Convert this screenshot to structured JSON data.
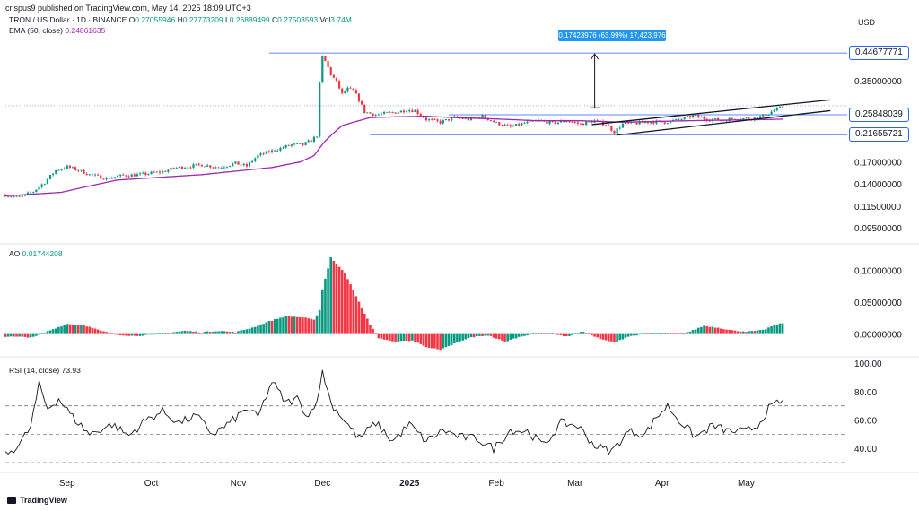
{
  "header": {
    "publisher": "crispus9 published on TradingView.com, May 14, 2025 18:09 UTC+3",
    "symbol": "TRON / US Dollar · 1D · BINANCE",
    "ohlc": [
      {
        "k": "O",
        "v": "0.27055946"
      },
      {
        "k": "H",
        "v": "0.27773209"
      },
      {
        "k": "L",
        "v": "0.26889499"
      },
      {
        "k": "C",
        "v": "0.27503593"
      },
      {
        "k": "Vol",
        "v": "3.74M"
      }
    ],
    "ema_label": "EMA (50, close)",
    "ema_value": "0.24861635",
    "currency": "USD"
  },
  "ao": {
    "label": "AO",
    "value": "0.01744208"
  },
  "rsi": {
    "label": "RSI (14, close)",
    "value": "73.93"
  },
  "measure": {
    "text": "0.17423976 (63.99%) 17,423,976"
  },
  "price_boxes": [
    {
      "text": "0.44677771",
      "value": 0.44677771
    },
    {
      "text": "0.25848039",
      "value": 0.25848039
    },
    {
      "text": "0.21655721",
      "value": 0.21655721
    }
  ],
  "brand": "TradingView",
  "colors": {
    "up": "#089981",
    "down": "#f23645",
    "ema": "#9c27b0",
    "rsi": "#131722",
    "level": "#2962ff"
  },
  "chart_data": [
    {
      "type": "candlestick",
      "title": "TRON / US Dollar · 1D · BINANCE",
      "y_scale": "log",
      "ylim": [
        0.085,
        0.52
      ],
      "y_ticks": [
        {
          "v": 0.35,
          "label": "0.35000000"
        },
        {
          "v": 0.17,
          "label": "0.17000000"
        },
        {
          "v": 0.14,
          "label": "0.14000000"
        },
        {
          "v": 0.115,
          "label": "0.11500000"
        },
        {
          "v": 0.095,
          "label": "0.09500000"
        }
      ],
      "x_labels": [
        {
          "label": "Sep",
          "bold": false,
          "day": 22
        },
        {
          "label": "Oct",
          "bold": false,
          "day": 52
        },
        {
          "label": "Nov",
          "bold": false,
          "day": 83
        },
        {
          "label": "Dec",
          "bold": false,
          "day": 113
        },
        {
          "label": "2025",
          "bold": true,
          "day": 144
        },
        {
          "label": "Feb",
          "bold": false,
          "day": 175
        },
        {
          "label": "Mar",
          "bold": false,
          "day": 203
        },
        {
          "label": "Apr",
          "bold": false,
          "day": 234
        },
        {
          "label": "May",
          "bold": false,
          "day": 264
        }
      ],
      "anchors": [
        [
          0,
          0.127
        ],
        [
          5,
          0.124
        ],
        [
          10,
          0.131
        ],
        [
          14,
          0.142
        ],
        [
          18,
          0.158
        ],
        [
          22,
          0.163
        ],
        [
          26,
          0.158
        ],
        [
          30,
          0.152
        ],
        [
          36,
          0.147
        ],
        [
          42,
          0.151
        ],
        [
          48,
          0.152
        ],
        [
          52,
          0.154
        ],
        [
          56,
          0.156
        ],
        [
          60,
          0.161
        ],
        [
          64,
          0.163
        ],
        [
          70,
          0.166
        ],
        [
          76,
          0.162
        ],
        [
          82,
          0.168
        ],
        [
          86,
          0.164
        ],
        [
          90,
          0.18
        ],
        [
          94,
          0.186
        ],
        [
          98,
          0.192
        ],
        [
          102,
          0.198
        ],
        [
          106,
          0.198
        ],
        [
          109,
          0.206
        ],
        [
          111,
          0.215
        ],
        [
          112,
          0.34
        ],
        [
          113,
          0.43
        ],
        [
          114,
          0.415
        ],
        [
          116,
          0.37
        ],
        [
          118,
          0.345
        ],
        [
          120,
          0.31
        ],
        [
          122,
          0.325
        ],
        [
          124,
          0.32
        ],
        [
          126,
          0.295
        ],
        [
          128,
          0.265
        ],
        [
          132,
          0.258
        ],
        [
          136,
          0.262
        ],
        [
          140,
          0.265
        ],
        [
          143,
          0.27
        ],
        [
          146,
          0.268
        ],
        [
          150,
          0.248
        ],
        [
          155,
          0.242
        ],
        [
          160,
          0.252
        ],
        [
          165,
          0.248
        ],
        [
          170,
          0.255
        ],
        [
          175,
          0.24
        ],
        [
          180,
          0.232
        ],
        [
          185,
          0.24
        ],
        [
          190,
          0.245
        ],
        [
          195,
          0.24
        ],
        [
          200,
          0.245
        ],
        [
          205,
          0.238
        ],
        [
          210,
          0.245
        ],
        [
          214,
          0.237
        ],
        [
          217,
          0.222
        ],
        [
          220,
          0.238
        ],
        [
          225,
          0.24
        ],
        [
          230,
          0.243
        ],
        [
          235,
          0.242
        ],
        [
          240,
          0.247
        ],
        [
          245,
          0.256
        ],
        [
          250,
          0.249
        ],
        [
          255,
          0.246
        ],
        [
          260,
          0.25
        ],
        [
          265,
          0.25
        ],
        [
          268,
          0.251
        ],
        [
          272,
          0.262
        ],
        [
          275,
          0.272
        ],
        [
          277,
          0.275
        ]
      ],
      "ema_anchors": [
        [
          0,
          0.126
        ],
        [
          20,
          0.13
        ],
        [
          40,
          0.145
        ],
        [
          70,
          0.152
        ],
        [
          95,
          0.162
        ],
        [
          105,
          0.17
        ],
        [
          110,
          0.18
        ],
        [
          114,
          0.205
        ],
        [
          120,
          0.235
        ],
        [
          130,
          0.252
        ],
        [
          140,
          0.254
        ],
        [
          150,
          0.255
        ],
        [
          160,
          0.252
        ],
        [
          175,
          0.249
        ],
        [
          190,
          0.245
        ],
        [
          205,
          0.245
        ],
        [
          220,
          0.242
        ],
        [
          235,
          0.244
        ],
        [
          250,
          0.246
        ],
        [
          265,
          0.247
        ],
        [
          277,
          0.24861635
        ]
      ],
      "levels": [
        {
          "value": 0.44677771,
          "from_day": 94
        },
        {
          "value": 0.25848039,
          "from_day": 158
        },
        {
          "value": 0.21655721,
          "from_day": 130
        },
        {
          "value": 0.28,
          "from_day": 0,
          "dotted": true
        }
      ],
      "measure_arrow": {
        "day": 210,
        "from": 0.275,
        "to": 0.44677771
      },
      "channel": {
        "upper": [
          [
            209,
            0.237
          ],
          [
            294,
            0.295
          ]
        ],
        "lower": [
          [
            218,
            0.216
          ],
          [
            294,
            0.268
          ]
        ]
      }
    },
    {
      "type": "histogram",
      "title": "AO",
      "ylim": [
        -0.03,
        0.13
      ],
      "y_ticks": [
        {
          "v": 0.1,
          "label": "0.10000000"
        },
        {
          "v": 0.05,
          "label": "0.05000000"
        },
        {
          "v": 0.0,
          "label": "0.00000000"
        }
      ],
      "anchors": [
        [
          0,
          -0.004
        ],
        [
          10,
          -0.005
        ],
        [
          16,
          0.006
        ],
        [
          22,
          0.016
        ],
        [
          28,
          0.014
        ],
        [
          34,
          0.005
        ],
        [
          40,
          -0.001
        ],
        [
          46,
          -0.003
        ],
        [
          52,
          -0.001
        ],
        [
          58,
          0.002
        ],
        [
          64,
          0.005
        ],
        [
          70,
          0.003
        ],
        [
          76,
          0.005
        ],
        [
          82,
          0.003
        ],
        [
          88,
          0.01
        ],
        [
          94,
          0.02
        ],
        [
          100,
          0.028
        ],
        [
          106,
          0.026
        ],
        [
          110,
          0.022
        ],
        [
          112,
          0.038
        ],
        [
          113,
          0.07
        ],
        [
          116,
          0.12
        ],
        [
          118,
          0.11
        ],
        [
          121,
          0.095
        ],
        [
          124,
          0.07
        ],
        [
          127,
          0.04
        ],
        [
          130,
          0.015
        ],
        [
          133,
          -0.006
        ],
        [
          138,
          -0.012
        ],
        [
          145,
          -0.01
        ],
        [
          150,
          -0.02
        ],
        [
          155,
          -0.025
        ],
        [
          160,
          -0.015
        ],
        [
          166,
          -0.005
        ],
        [
          172,
          -0.002
        ],
        [
          178,
          -0.012
        ],
        [
          182,
          -0.006
        ],
        [
          188,
          0.001
        ],
        [
          194,
          0.002
        ],
        [
          200,
          -0.004
        ],
        [
          206,
          0.004
        ],
        [
          212,
          -0.008
        ],
        [
          217,
          -0.013
        ],
        [
          222,
          -0.004
        ],
        [
          228,
          0.001
        ],
        [
          234,
          0.002
        ],
        [
          240,
          0.0
        ],
        [
          244,
          0.004
        ],
        [
          249,
          0.013
        ],
        [
          254,
          0.01
        ],
        [
          260,
          0.005
        ],
        [
          265,
          0.004
        ],
        [
          270,
          0.006
        ],
        [
          274,
          0.014
        ],
        [
          277,
          0.0174
        ]
      ]
    },
    {
      "type": "line",
      "title": "RSI (14, close)",
      "ylim": [
        25,
        102
      ],
      "y_ticks": [
        {
          "v": 100,
          "label": "100.00"
        },
        {
          "v": 80,
          "label": "80.00"
        },
        {
          "v": 60,
          "label": "60.00"
        },
        {
          "v": 40,
          "label": "40.00"
        }
      ],
      "bands": [
        70,
        50,
        30
      ],
      "anchors": [
        [
          0,
          35
        ],
        [
          5,
          43
        ],
        [
          9,
          55
        ],
        [
          12,
          85
        ],
        [
          15,
          68
        ],
        [
          19,
          75
        ],
        [
          24,
          62
        ],
        [
          30,
          50
        ],
        [
          38,
          57
        ],
        [
          44,
          49
        ],
        [
          50,
          60
        ],
        [
          56,
          66
        ],
        [
          62,
          58
        ],
        [
          68,
          63
        ],
        [
          74,
          50
        ],
        [
          80,
          58
        ],
        [
          86,
          68
        ],
        [
          90,
          62
        ],
        [
          95,
          87
        ],
        [
          100,
          72
        ],
        [
          104,
          75
        ],
        [
          108,
          62
        ],
        [
          112,
          80
        ],
        [
          113,
          95
        ],
        [
          116,
          72
        ],
        [
          120,
          62
        ],
        [
          126,
          47
        ],
        [
          132,
          58
        ],
        [
          138,
          45
        ],
        [
          144,
          57
        ],
        [
          150,
          45
        ],
        [
          156,
          53
        ],
        [
          162,
          48
        ],
        [
          168,
          47
        ],
        [
          174,
          40
        ],
        [
          180,
          53
        ],
        [
          186,
          52
        ],
        [
          192,
          42
        ],
        [
          198,
          58
        ],
        [
          204,
          56
        ],
        [
          210,
          42
        ],
        [
          216,
          38
        ],
        [
          222,
          52
        ],
        [
          228,
          50
        ],
        [
          232,
          62
        ],
        [
          236,
          70
        ],
        [
          240,
          60
        ],
        [
          246,
          48
        ],
        [
          252,
          56
        ],
        [
          258,
          52
        ],
        [
          264,
          52
        ],
        [
          268,
          56
        ],
        [
          272,
          68
        ],
        [
          277,
          73.93
        ]
      ]
    }
  ]
}
